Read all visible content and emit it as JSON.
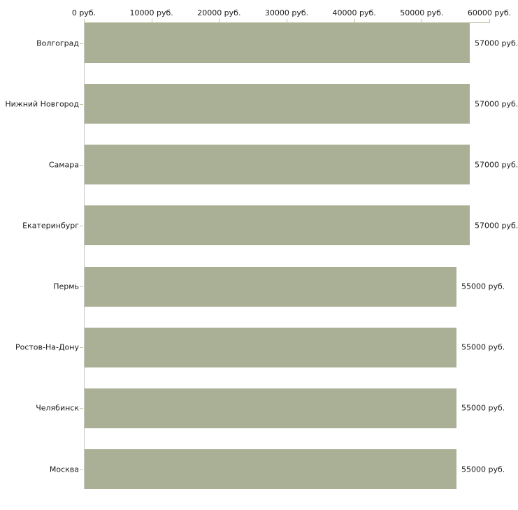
{
  "chart_data": {
    "type": "bar",
    "orientation": "horizontal",
    "title": "",
    "xlabel": "",
    "ylabel": "",
    "unit": "руб.",
    "grid": false,
    "legend": false,
    "xlim": [
      0,
      60000
    ],
    "categories": [
      "Волгоград",
      "Нижний Новгород",
      "Самара",
      "Екатеринбург",
      "Пермь",
      "Ростов-На-Дону",
      "Челябинск",
      "Москва"
    ],
    "values": [
      57000,
      57000,
      57000,
      57000,
      55000,
      55000,
      55000,
      55000
    ],
    "bar_value_labels": [
      "57000 руб.",
      "57000 руб.",
      "57000 руб.",
      "57000 руб.",
      "55000 руб.",
      "55000 руб.",
      "55000 руб.",
      "55000 руб."
    ],
    "x_ticks": [
      {
        "value": 0,
        "label": "0 руб."
      },
      {
        "value": 10000,
        "label": "10000 руб."
      },
      {
        "value": 20000,
        "label": "20000 руб."
      },
      {
        "value": 30000,
        "label": "30000 руб."
      },
      {
        "value": 40000,
        "label": "40000 руб."
      },
      {
        "value": 50000,
        "label": "50000 руб."
      },
      {
        "value": 60000,
        "label": "60000 руб."
      }
    ],
    "colors": {
      "bar": "#aab095",
      "background": "#ffffff",
      "text": "#1a1a1a",
      "axis_tick": "#c2c4a4",
      "axis_line_horizontal": "#bec0a0",
      "axis_line_vertical": "#c6c6c6"
    }
  }
}
